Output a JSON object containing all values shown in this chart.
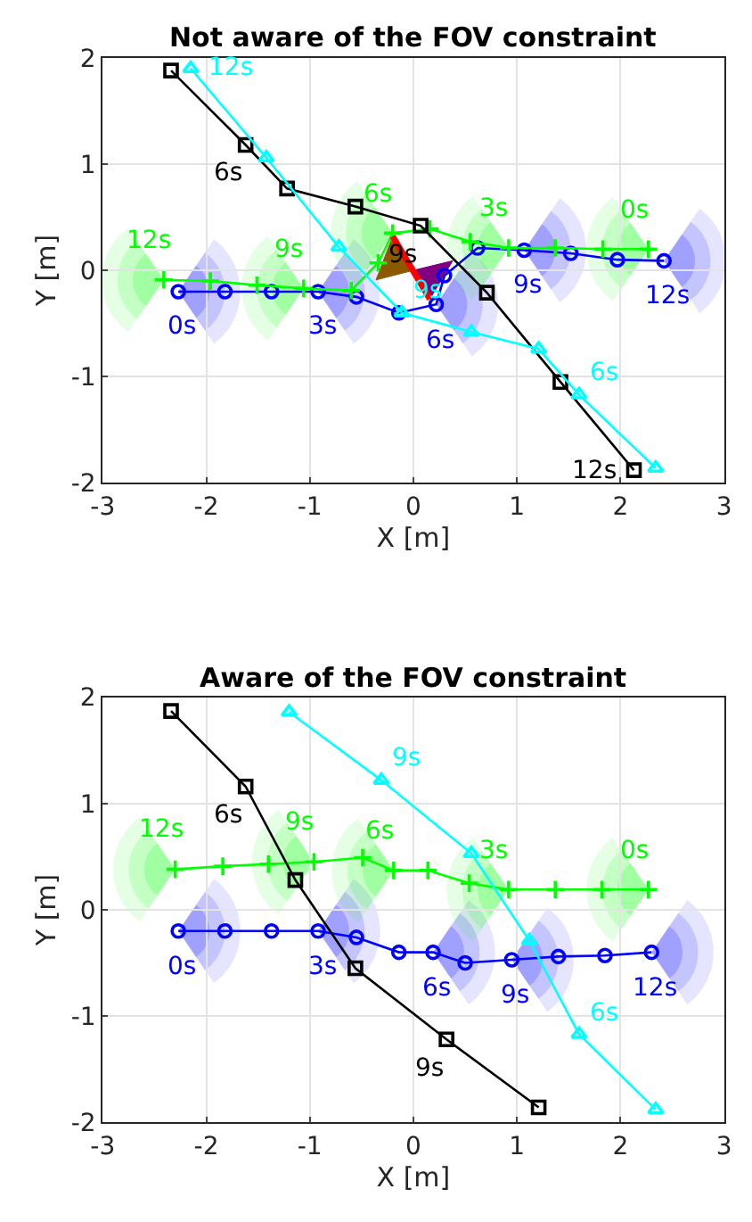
{
  "chart_data": [
    {
      "type": "line",
      "title": "Not aware of the FOV constraint",
      "xlabel": "X [m]",
      "ylabel": "Y [m]",
      "xlim": [
        -3,
        3
      ],
      "ylim": [
        -2,
        2
      ],
      "xticks": [
        -3,
        -2,
        -1,
        0,
        1,
        2,
        3
      ],
      "yticks": [
        -2,
        -1,
        0,
        1,
        2
      ],
      "grid": true,
      "line_style": "solid",
      "series": [
        {
          "color": "#0000ff",
          "marker": "circle",
          "x": [
            -2.27,
            -1.82,
            -1.37,
            -0.92,
            -0.55,
            -0.14,
            0.22,
            0.3,
            0.62,
            1.07,
            1.52,
            1.97,
            2.42
          ],
          "values": [
            -0.2,
            -0.2,
            -0.2,
            -0.2,
            -0.25,
            -0.4,
            -0.32,
            -0.05,
            0.21,
            0.19,
            0.16,
            0.1,
            0.09
          ]
        },
        {
          "color": "#00ff00",
          "marker": "cross",
          "x": [
            -2.41,
            -1.96,
            -1.51,
            -1.06,
            -0.6,
            -0.34,
            -0.2,
            0.16,
            0.55,
            0.92,
            1.37,
            1.83,
            2.27
          ],
          "values": [
            -0.09,
            -0.1,
            -0.14,
            -0.17,
            -0.19,
            0.07,
            0.35,
            0.39,
            0.27,
            0.21,
            0.21,
            0.2,
            0.2
          ]
        },
        {
          "color": "#000000",
          "marker": "square",
          "x": [
            -2.34,
            -1.62,
            -1.22,
            -0.56,
            0.07,
            0.71,
            1.42,
            2.13
          ],
          "values": [
            1.88,
            1.18,
            0.77,
            0.6,
            0.42,
            -0.21,
            -1.05,
            -1.88
          ]
        },
        {
          "color": "#00ffff",
          "marker": "triangle",
          "x": [
            -2.15,
            -1.42,
            -0.72,
            -0.11,
            0.56,
            1.21,
            1.6,
            2.34
          ],
          "values": [
            1.9,
            1.06,
            0.22,
            -0.4,
            -0.58,
            -0.74,
            -1.17,
            -1.86
          ]
        },
        {
          "type": "area",
          "color": "#8b5a00",
          "marker": "none",
          "x": [
            -0.2,
            -0.36,
            0.0
          ],
          "values": [
            0.32,
            -0.09,
            0.0
          ]
        },
        {
          "type": "area",
          "color": "#80007f",
          "marker": "none",
          "x": [
            0.0,
            0.38,
            0.16
          ],
          "values": [
            0.0,
            0.09,
            -0.27
          ]
        },
        {
          "color": "#ff0000",
          "marker": "none",
          "x": [
            -0.2,
            0.16
          ],
          "values": [
            0.32,
            -0.27
          ]
        }
      ],
      "annotations": [
        {
          "text": "0s",
          "x": -2.27,
          "y": -0.2
        },
        {
          "text": "3s",
          "x": -0.92,
          "y": -0.2
        },
        {
          "text": "6s",
          "x": 0.22,
          "y": -0.32
        },
        {
          "text": "9s",
          "x": 1.07,
          "y": 0.19
        },
        {
          "text": "12s",
          "x": 2.42,
          "y": 0.09
        },
        {
          "text": "12s",
          "x": -2.41,
          "y": -0.09
        },
        {
          "text": "9s",
          "x": -1.06,
          "y": -0.17
        },
        {
          "text": "6s",
          "x": -0.2,
          "y": 0.35
        },
        {
          "text": "3s",
          "x": 0.92,
          "y": 0.21
        },
        {
          "text": "0s",
          "x": 2.27,
          "y": 0.2
        },
        {
          "text": "6s",
          "x": -1.62,
          "y": 1.18
        },
        {
          "text": "9s",
          "x": 0.07,
          "y": 0.42
        },
        {
          "text": "12s",
          "x": 2.13,
          "y": -1.88
        },
        {
          "text": "12s",
          "x": -2.15,
          "y": 1.9
        },
        {
          "text": "9s",
          "x": -0.11,
          "y": -0.4
        },
        {
          "text": "6s",
          "x": 1.6,
          "y": -1.17
        }
      ]
    },
    {
      "type": "line",
      "title": "Aware of the FOV constraint",
      "xlabel": "X [m]",
      "ylabel": "Y [m]",
      "xlim": [
        -3,
        3
      ],
      "ylim": [
        -2,
        2
      ],
      "xticks": [
        -3,
        -2,
        -1,
        0,
        1,
        2,
        3
      ],
      "yticks": [
        -2,
        -1,
        0,
        1,
        2
      ],
      "grid": true,
      "line_style": "solid",
      "series": [
        {
          "color": "#0000ff",
          "marker": "circle",
          "x": [
            -2.27,
            -1.82,
            -1.37,
            -0.92,
            -0.55,
            -0.14,
            0.19,
            0.5,
            0.95,
            1.4,
            1.85,
            2.3
          ],
          "values": [
            -0.2,
            -0.2,
            -0.2,
            -0.2,
            -0.26,
            -0.4,
            -0.4,
            -0.5,
            -0.47,
            -0.44,
            -0.43,
            -0.4
          ]
        },
        {
          "color": "#00ff00",
          "marker": "cross",
          "x": [
            -2.3,
            -1.84,
            -1.4,
            -0.96,
            -0.49,
            -0.19,
            0.14,
            0.54,
            0.92,
            1.37,
            1.82,
            2.27
          ],
          "values": [
            0.38,
            0.41,
            0.43,
            0.45,
            0.49,
            0.37,
            0.37,
            0.25,
            0.19,
            0.19,
            0.19,
            0.19
          ]
        },
        {
          "color": "#000000",
          "marker": "square",
          "x": [
            -2.34,
            -1.62,
            -1.14,
            -0.56,
            0.32,
            1.21
          ],
          "values": [
            1.87,
            1.16,
            0.28,
            -0.55,
            -1.22,
            -1.86
          ]
        },
        {
          "color": "#00ffff",
          "marker": "triangle",
          "x": [
            -1.2,
            -0.31,
            0.56,
            1.12,
            1.6,
            2.34
          ],
          "values": [
            1.86,
            1.22,
            0.53,
            -0.29,
            -1.17,
            -1.88
          ]
        }
      ],
      "annotations": [
        {
          "text": "0s",
          "x": -2.27,
          "y": -0.2
        },
        {
          "text": "3s",
          "x": -0.92,
          "y": -0.2
        },
        {
          "text": "6s",
          "x": 0.19,
          "y": -0.4
        },
        {
          "text": "9s",
          "x": 0.95,
          "y": -0.47
        },
        {
          "text": "12s",
          "x": 2.3,
          "y": -0.4
        },
        {
          "text": "12s",
          "x": -2.3,
          "y": 0.38
        },
        {
          "text": "9s",
          "x": -0.96,
          "y": 0.45
        },
        {
          "text": "6s",
          "x": -0.19,
          "y": 0.37
        },
        {
          "text": "3s",
          "x": 0.92,
          "y": 0.19
        },
        {
          "text": "0s",
          "x": 2.27,
          "y": 0.19
        },
        {
          "text": "6s",
          "x": -1.62,
          "y": 1.16
        },
        {
          "text": "9s",
          "x": 0.32,
          "y": -1.22
        },
        {
          "text": "9s",
          "x": -0.31,
          "y": 1.22
        },
        {
          "text": "6s",
          "x": 1.6,
          "y": -1.17
        }
      ]
    }
  ]
}
